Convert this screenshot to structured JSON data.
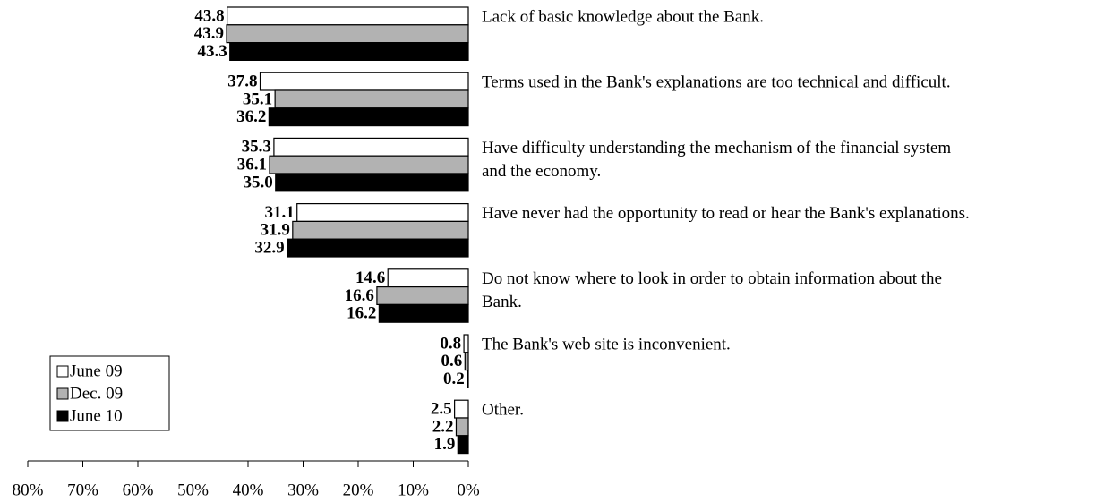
{
  "chart_data": {
    "type": "barh",
    "categories": [
      [
        "Lack of basic knowledge about the Bank."
      ],
      [
        "Terms used in the Bank's explanations are too technical and difficult."
      ],
      [
        "Have difficulty understanding the mechanism of the financial system",
        "and the economy."
      ],
      [
        "Have never had the opportunity to read or hear the Bank's explanations."
      ],
      [
        "Do not know where to look in order to obtain information about the",
        "Bank."
      ],
      [
        "The Bank's web site is inconvenient."
      ],
      [
        "Other."
      ]
    ],
    "series": [
      {
        "name": "June 09",
        "color": "#ffffff",
        "values": [
          43.8,
          37.8,
          35.3,
          31.1,
          14.6,
          0.8,
          2.5
        ],
        "value_labels": [
          "43.8",
          "37.8",
          "35.3",
          "31.1",
          "14.6",
          "0.8",
          "2.5"
        ]
      },
      {
        "name": "Dec. 09",
        "color": "#b2b2b2",
        "values": [
          43.9,
          35.1,
          36.1,
          31.9,
          16.6,
          0.6,
          2.2
        ],
        "value_labels": [
          "43.9",
          "35.1",
          "36.1",
          "31.9",
          "16.6",
          "0.6",
          "2.2"
        ]
      },
      {
        "name": "June 10",
        "color": "#000000",
        "values": [
          43.3,
          36.2,
          35.0,
          32.9,
          16.2,
          0.2,
          1.9
        ],
        "value_labels": [
          "43.3",
          "36.2",
          "35.0",
          "32.9",
          "16.2",
          "0.2",
          "1.9"
        ]
      }
    ],
    "xlim": [
      0,
      80
    ],
    "x_inverted": true,
    "xticks": [
      {
        "value": 80,
        "label": "80%"
      },
      {
        "value": 70,
        "label": "70%"
      },
      {
        "value": 60,
        "label": "60%"
      },
      {
        "value": 50,
        "label": "50%"
      },
      {
        "value": 40,
        "label": "40%"
      },
      {
        "value": 30,
        "label": "30%"
      },
      {
        "value": 20,
        "label": "20%"
      },
      {
        "value": 10,
        "label": "10%"
      },
      {
        "value": 0,
        "label": "0%"
      }
    ],
    "legend": "lower left"
  }
}
